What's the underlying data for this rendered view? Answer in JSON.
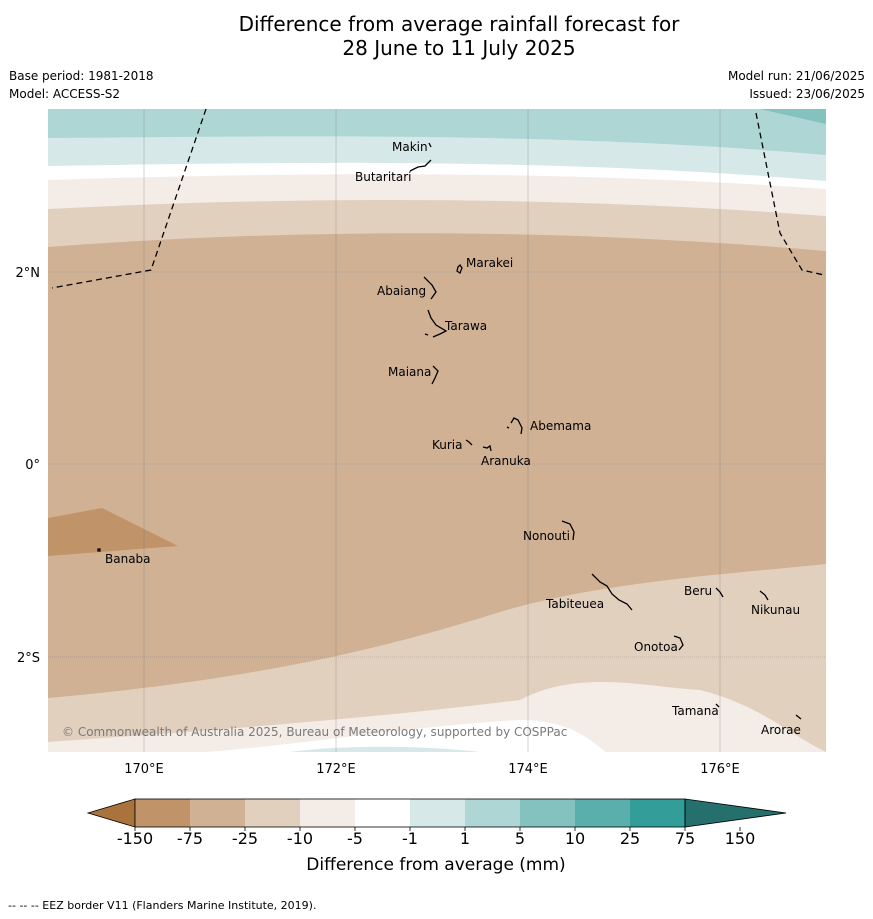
{
  "title": {
    "line1": "Difference from average rainfall forecast for",
    "line2": "28 June to 11 July 2025"
  },
  "meta": {
    "base_period": "Base period: 1981-2018",
    "model": "Model: ACCESS-S2",
    "model_run": "Model run: 21/06/2025",
    "issued": "Issued: 23/06/2025"
  },
  "map": {
    "lat_labels": [
      "2°N",
      "0°",
      "2°S"
    ],
    "lon_labels": [
      "170°E",
      "172°E",
      "174°E",
      "176°E"
    ],
    "copyright": "© Commonwealth of Australia 2025, Bureau of Meteorology, supported by COSPPac",
    "islands": [
      {
        "name": "Makin"
      },
      {
        "name": "Butaritari"
      },
      {
        "name": "Marakei"
      },
      {
        "name": "Abaiang"
      },
      {
        "name": "Tarawa"
      },
      {
        "name": "Maiana"
      },
      {
        "name": "Abemama"
      },
      {
        "name": "Kuria"
      },
      {
        "name": "Aranuka"
      },
      {
        "name": "Nonouti"
      },
      {
        "name": "Banaba"
      },
      {
        "name": "Beru"
      },
      {
        "name": "Nikunau"
      },
      {
        "name": "Tabiteuea"
      },
      {
        "name": "Onotoa"
      },
      {
        "name": "Tamana"
      },
      {
        "name": "Arorae"
      }
    ]
  },
  "legend": {
    "ticks": [
      "-150",
      "-75",
      "-25",
      "-10",
      "-5",
      "-1",
      "1",
      "5",
      "10",
      "25",
      "75",
      "150"
    ],
    "colors": [
      "#ab733c",
      "#c09369",
      "#d0b194",
      "#e2d0bf",
      "#f4ece7",
      "#ffffff",
      "#d6e9e8",
      "#aed6d4",
      "#84c2c0",
      "#5aaeac",
      "#329d99",
      "#256f6c"
    ],
    "label": "Difference from average (mm)"
  },
  "footnote": "--  --  -- EEZ border V11 (Flanders Marine Institute, 2019)."
}
